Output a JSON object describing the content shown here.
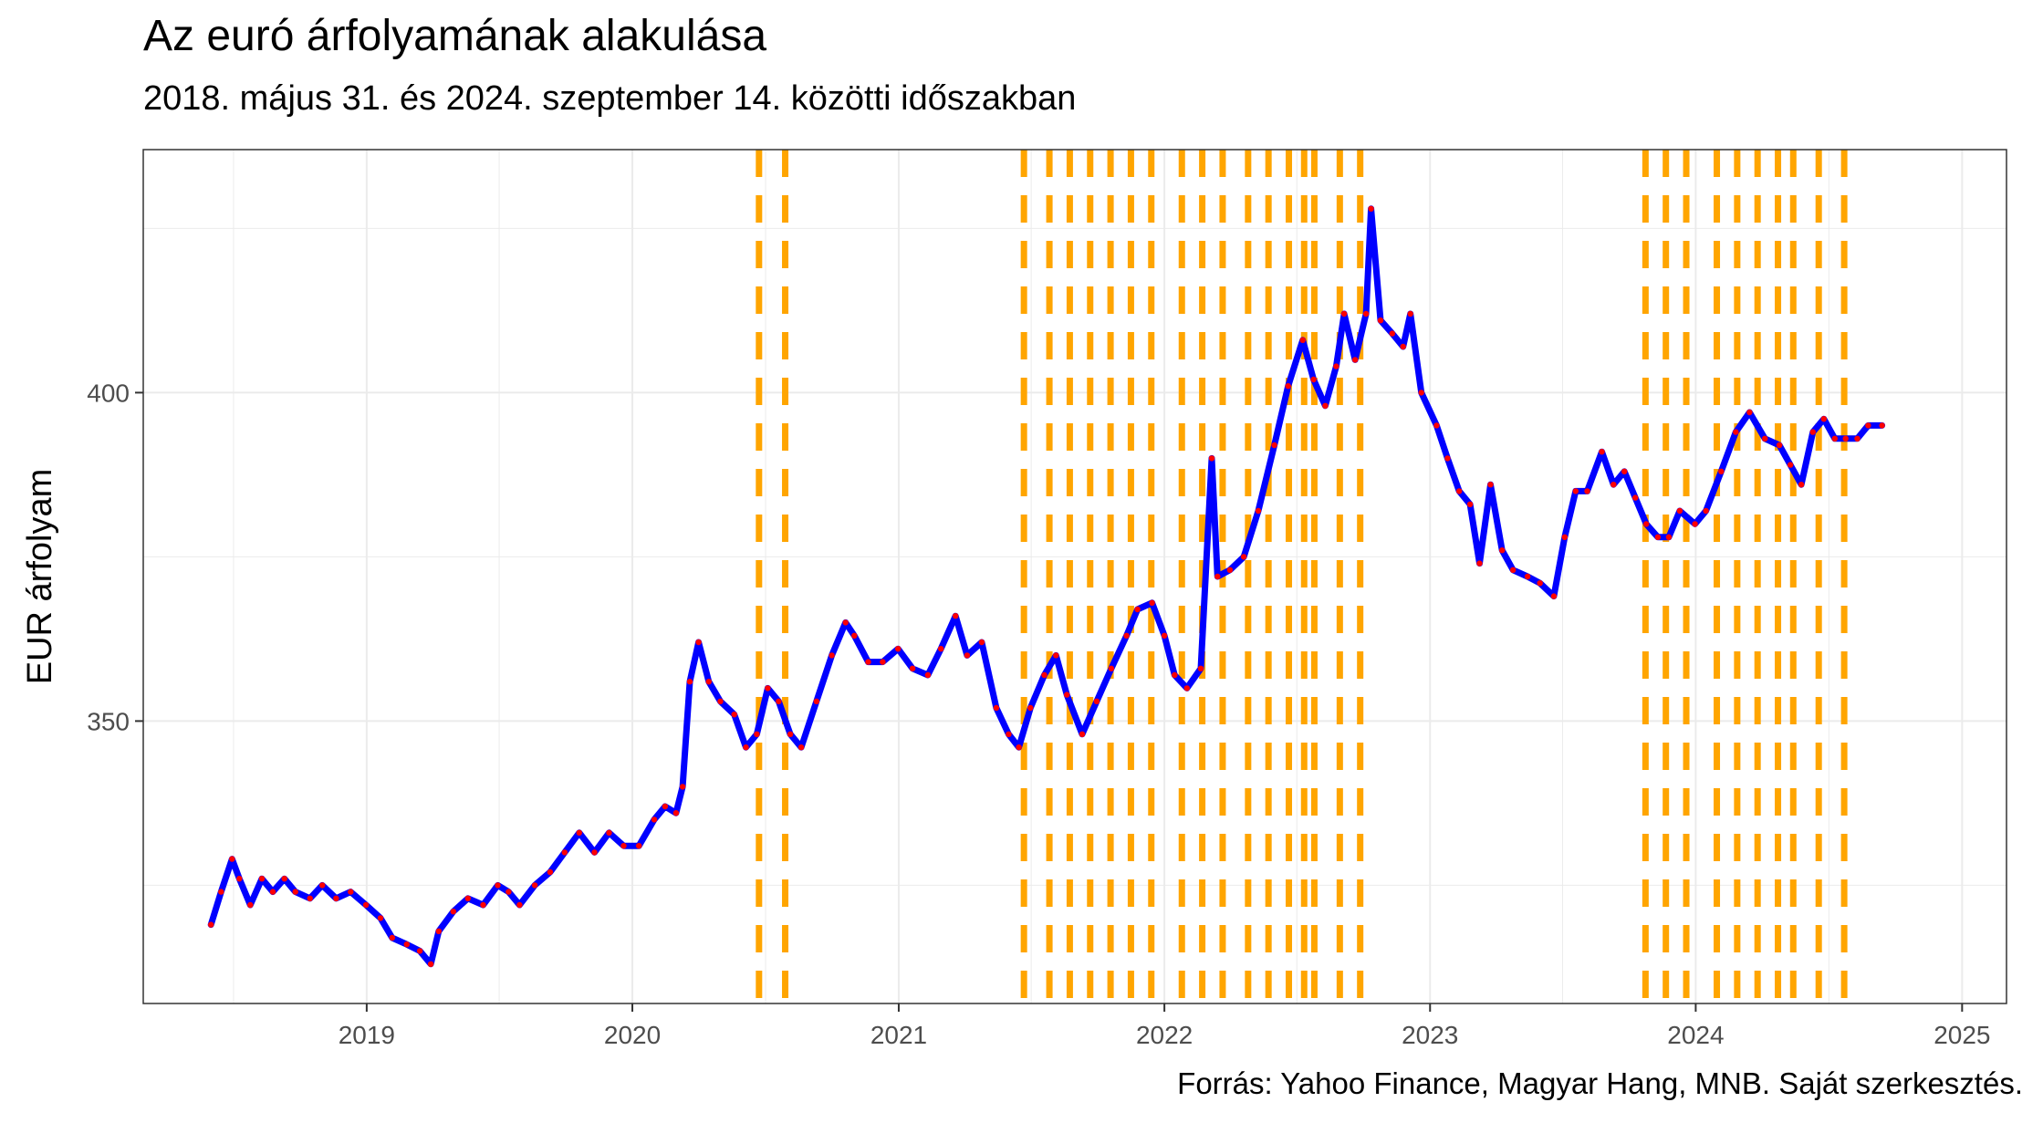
{
  "chart_data": {
    "type": "line",
    "title": "Az euró árfolyamának alakulása",
    "subtitle": "2018. május 31. és 2024. szeptember 14. közötti időszakban",
    "caption": "Forrás: Yahoo Finance, Magyar Hang, MNB. Saját szerkesztés.",
    "xlabel": "",
    "ylabel": "EUR árfolyam",
    "xlim": [
      "2018-02-28",
      "2025-03-03"
    ],
    "ylim": [
      307,
      437
    ],
    "x_ticks": [
      "2019",
      "2020",
      "2021",
      "2022",
      "2023",
      "2024",
      "2025"
    ],
    "y_ticks": [
      350,
      400
    ],
    "grid": true,
    "colors": {
      "line": "#0000ff",
      "points": "#ff0000",
      "vlines": "#ffa500",
      "grid": "#ebebeb",
      "panel_border": "#333333"
    },
    "series": [
      {
        "values": [
          [
            "2018-06-01",
            319
          ],
          [
            "2018-06-15",
            324
          ],
          [
            "2018-06-30",
            329
          ],
          [
            "2018-07-10",
            326
          ],
          [
            "2018-07-25",
            322
          ],
          [
            "2018-08-10",
            326
          ],
          [
            "2018-08-25",
            324
          ],
          [
            "2018-09-10",
            326
          ],
          [
            "2018-09-25",
            324
          ],
          [
            "2018-10-15",
            323
          ],
          [
            "2018-11-01",
            325
          ],
          [
            "2018-11-20",
            323
          ],
          [
            "2018-12-10",
            324
          ],
          [
            "2018-12-31",
            322
          ],
          [
            "2019-01-20",
            320
          ],
          [
            "2019-02-05",
            317
          ],
          [
            "2019-02-25",
            316
          ],
          [
            "2019-03-15",
            315
          ],
          [
            "2019-03-30",
            313
          ],
          [
            "2019-04-10",
            318
          ],
          [
            "2019-04-30",
            321
          ],
          [
            "2019-05-20",
            323
          ],
          [
            "2019-06-10",
            322
          ],
          [
            "2019-06-30",
            325
          ],
          [
            "2019-07-15",
            324
          ],
          [
            "2019-07-30",
            322
          ],
          [
            "2019-08-20",
            325
          ],
          [
            "2019-09-10",
            327
          ],
          [
            "2019-09-30",
            330
          ],
          [
            "2019-10-20",
            333
          ],
          [
            "2019-11-10",
            330
          ],
          [
            "2019-11-30",
            333
          ],
          [
            "2019-12-20",
            331
          ],
          [
            "2020-01-10",
            331
          ],
          [
            "2020-01-31",
            335
          ],
          [
            "2020-02-15",
            337
          ],
          [
            "2020-03-01",
            336
          ],
          [
            "2020-03-10",
            340
          ],
          [
            "2020-03-20",
            356
          ],
          [
            "2020-04-01",
            362
          ],
          [
            "2020-04-15",
            356
          ],
          [
            "2020-05-01",
            353
          ],
          [
            "2020-05-20",
            351
          ],
          [
            "2020-06-05",
            346
          ],
          [
            "2020-06-20",
            348
          ],
          [
            "2020-07-05",
            355
          ],
          [
            "2020-07-20",
            353
          ],
          [
            "2020-08-05",
            348
          ],
          [
            "2020-08-20",
            346
          ],
          [
            "2020-09-10",
            353
          ],
          [
            "2020-10-01",
            360
          ],
          [
            "2020-10-20",
            365
          ],
          [
            "2020-11-01",
            363
          ],
          [
            "2020-11-20",
            359
          ],
          [
            "2020-12-10",
            359
          ],
          [
            "2020-12-31",
            361
          ],
          [
            "2021-01-20",
            358
          ],
          [
            "2021-02-10",
            357
          ],
          [
            "2021-02-28",
            361
          ],
          [
            "2021-03-20",
            366
          ],
          [
            "2021-04-05",
            360
          ],
          [
            "2021-04-25",
            362
          ],
          [
            "2021-05-15",
            352
          ],
          [
            "2021-06-01",
            348
          ],
          [
            "2021-06-15",
            346
          ],
          [
            "2021-07-01",
            352
          ],
          [
            "2021-07-20",
            357
          ],
          [
            "2021-08-05",
            360
          ],
          [
            "2021-08-20",
            354
          ],
          [
            "2021-09-10",
            348
          ],
          [
            "2021-09-30",
            353
          ],
          [
            "2021-10-20",
            358
          ],
          [
            "2021-11-10",
            363
          ],
          [
            "2021-11-25",
            367
          ],
          [
            "2021-12-15",
            368
          ],
          [
            "2022-01-01",
            363
          ],
          [
            "2022-01-15",
            357
          ],
          [
            "2022-02-01",
            355
          ],
          [
            "2022-02-20",
            358
          ],
          [
            "2022-03-07",
            390
          ],
          [
            "2022-03-15",
            372
          ],
          [
            "2022-04-01",
            373
          ],
          [
            "2022-04-20",
            375
          ],
          [
            "2022-05-10",
            382
          ],
          [
            "2022-06-01",
            392
          ],
          [
            "2022-06-20",
            401
          ],
          [
            "2022-07-10",
            408
          ],
          [
            "2022-07-25",
            402
          ],
          [
            "2022-08-10",
            398
          ],
          [
            "2022-08-25",
            404
          ],
          [
            "2022-09-05",
            412
          ],
          [
            "2022-09-20",
            405
          ],
          [
            "2022-10-05",
            412
          ],
          [
            "2022-10-12",
            428
          ],
          [
            "2022-10-25",
            411
          ],
          [
            "2022-11-10",
            409
          ],
          [
            "2022-11-25",
            407
          ],
          [
            "2022-12-05",
            412
          ],
          [
            "2022-12-20",
            400
          ],
          [
            "2023-01-10",
            395
          ],
          [
            "2023-01-25",
            390
          ],
          [
            "2023-02-10",
            385
          ],
          [
            "2023-02-25",
            383
          ],
          [
            "2023-03-10",
            374
          ],
          [
            "2023-03-25",
            386
          ],
          [
            "2023-04-10",
            376
          ],
          [
            "2023-04-25",
            373
          ],
          [
            "2023-05-15",
            372
          ],
          [
            "2023-06-01",
            371
          ],
          [
            "2023-06-20",
            369
          ],
          [
            "2023-07-05",
            378
          ],
          [
            "2023-07-20",
            385
          ],
          [
            "2023-08-05",
            385
          ],
          [
            "2023-08-25",
            391
          ],
          [
            "2023-09-10",
            386
          ],
          [
            "2023-09-25",
            388
          ],
          [
            "2023-10-10",
            384
          ],
          [
            "2023-10-25",
            380
          ],
          [
            "2023-11-10",
            378
          ],
          [
            "2023-11-25",
            378
          ],
          [
            "2023-12-10",
            382
          ],
          [
            "2023-12-31",
            380
          ],
          [
            "2024-01-15",
            382
          ],
          [
            "2024-02-05",
            388
          ],
          [
            "2024-02-25",
            394
          ],
          [
            "2024-03-15",
            397
          ],
          [
            "2024-04-05",
            393
          ],
          [
            "2024-04-25",
            392
          ],
          [
            "2024-05-10",
            389
          ],
          [
            "2024-05-25",
            386
          ],
          [
            "2024-06-10",
            394
          ],
          [
            "2024-06-25",
            396
          ],
          [
            "2024-07-10",
            393
          ],
          [
            "2024-07-25",
            393
          ],
          [
            "2024-08-10",
            393
          ],
          [
            "2024-08-25",
            395
          ],
          [
            "2024-09-13",
            395
          ]
        ]
      }
    ],
    "vlines": [
      "2020-06-23",
      "2020-07-29",
      "2021-06-22",
      "2021-07-27",
      "2021-08-24",
      "2021-09-21",
      "2021-10-19",
      "2021-11-16",
      "2021-12-14",
      "2022-01-25",
      "2022-02-22",
      "2022-03-22",
      "2022-04-26",
      "2022-05-24",
      "2022-06-21",
      "2022-07-12",
      "2022-07-26",
      "2022-08-30",
      "2022-09-27",
      "2023-10-24",
      "2023-11-21",
      "2023-12-19",
      "2024-01-30",
      "2024-02-27",
      "2024-03-26",
      "2024-04-23",
      "2024-05-14",
      "2024-06-18",
      "2024-07-23"
    ]
  }
}
